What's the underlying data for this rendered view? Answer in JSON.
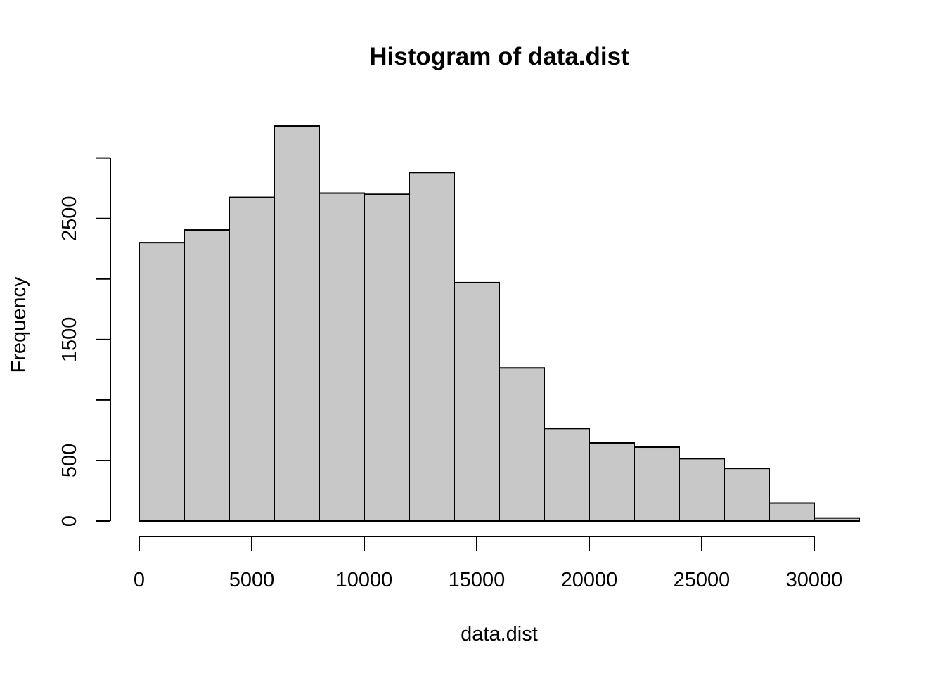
{
  "chart_data": {
    "type": "bar",
    "title": "Histogram of data.dist",
    "xlabel": "data.dist",
    "ylabel": "Frequency",
    "bin_width": 2000,
    "bins": [
      {
        "x0": 0,
        "x1": 2000,
        "count": 2300
      },
      {
        "x0": 2000,
        "x1": 4000,
        "count": 2405
      },
      {
        "x0": 4000,
        "x1": 6000,
        "count": 2675
      },
      {
        "x0": 6000,
        "x1": 8000,
        "count": 3265
      },
      {
        "x0": 8000,
        "x1": 10000,
        "count": 2710
      },
      {
        "x0": 10000,
        "x1": 12000,
        "count": 2700
      },
      {
        "x0": 12000,
        "x1": 14000,
        "count": 2880
      },
      {
        "x0": 14000,
        "x1": 16000,
        "count": 1970
      },
      {
        "x0": 16000,
        "x1": 18000,
        "count": 1265
      },
      {
        "x0": 18000,
        "x1": 20000,
        "count": 765
      },
      {
        "x0": 20000,
        "x1": 22000,
        "count": 645
      },
      {
        "x0": 22000,
        "x1": 24000,
        "count": 610
      },
      {
        "x0": 24000,
        "x1": 26000,
        "count": 515
      },
      {
        "x0": 26000,
        "x1": 28000,
        "count": 435
      },
      {
        "x0": 28000,
        "x1": 30000,
        "count": 148
      },
      {
        "x0": 30000,
        "x1": 32000,
        "count": 25
      }
    ],
    "x_ticks": [
      0,
      5000,
      10000,
      15000,
      20000,
      25000,
      30000
    ],
    "x_tick_labels": [
      "0",
      "5000",
      "10000",
      "15000",
      "20000",
      "25000",
      "30000"
    ],
    "y_ticks": [
      0,
      500,
      1000,
      1500,
      2000,
      2500,
      3000
    ],
    "y_tick_labels": [
      "0",
      "500",
      "",
      "1500",
      "",
      "2500",
      ""
    ],
    "xlim": [
      0,
      32000
    ],
    "ylim": [
      0,
      3300
    ],
    "grid": false
  }
}
